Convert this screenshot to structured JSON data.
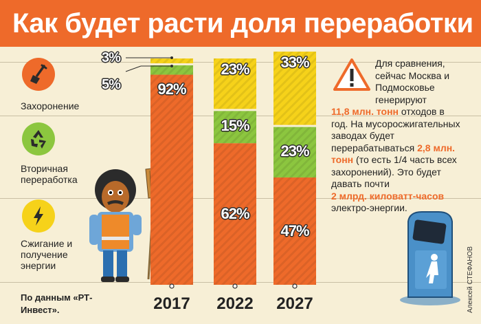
{
  "title": "Как будет расти доля переработки",
  "legend": [
    {
      "label": "Захоронение",
      "icon": "shovel-icon",
      "color": "#ee6a2a"
    },
    {
      "label": "Вторичная переработка",
      "icon": "recycle-icon",
      "color": "#8cc63f"
    },
    {
      "label": "Сжигание и получение энергии",
      "icon": "lightning-icon",
      "color": "#f6d21a"
    }
  ],
  "colors": {
    "landfill": "#ee6a2a",
    "recycling": "#8cc63f",
    "incineration": "#f6d21a",
    "title_bar": "#ee6a2a",
    "background": "#f7efd6"
  },
  "chart_data": {
    "type": "bar",
    "stacked": true,
    "categories": [
      "2017",
      "2022",
      "2027"
    ],
    "series": [
      {
        "name": "Захоронение",
        "values": [
          92,
          62,
          47
        ]
      },
      {
        "name": "Вторичная переработка",
        "values": [
          5,
          15,
          23
        ]
      },
      {
        "name": "Сжигание и получение энергии",
        "values": [
          3,
          23,
          33
        ]
      }
    ],
    "value_labels": [
      [
        "92%",
        "5%",
        "3%"
      ],
      [
        "62%",
        "15%",
        "23%"
      ],
      [
        "47%",
        "23%",
        "33%"
      ]
    ],
    "ylim": [
      0,
      100
    ]
  },
  "info": {
    "p1": "Для сравнения, сейчас Москва и Подмосковье генерируют",
    "h1": "11,8 млн. тонн",
    "p2": "отходов в год. На мусоросжигательных заводах будет перерабатываться",
    "h2": "2,8 млн. тонн",
    "p3": "(то есть 1/4 часть всех захоронений). Это будет давать почти",
    "h3": "2 млрд. киловатт-часов",
    "p4": "электро-энергии."
  },
  "source": "По данным «РТ-Инвест».",
  "credit": "Алексей СТЕФАНОВ"
}
